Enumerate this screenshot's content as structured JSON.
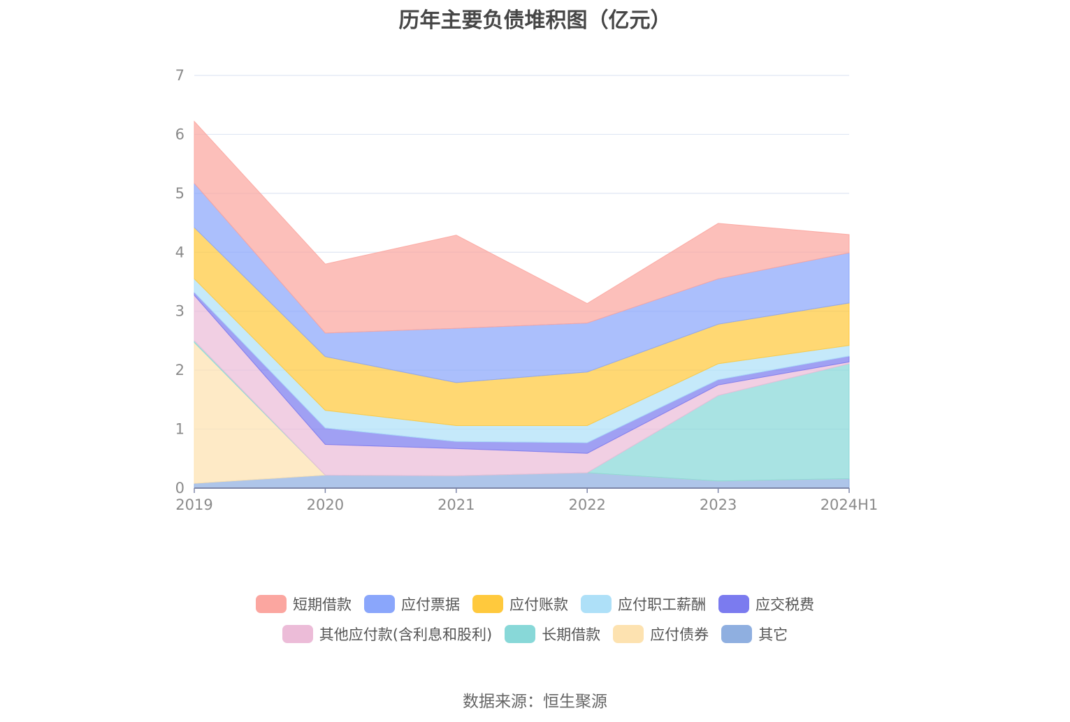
{
  "title": "历年主要负债堆积图（亿元）",
  "source": "数据来源：恒生聚源",
  "chart_data": {
    "type": "area",
    "stacked": true,
    "categories": [
      "2019",
      "2020",
      "2021",
      "2022",
      "2023",
      "2024H1"
    ],
    "ylim": [
      0,
      7
    ],
    "yticks": [
      0,
      1,
      2,
      3,
      4,
      5,
      6,
      7
    ],
    "grid": true,
    "legend_position": "bottom",
    "series": [
      {
        "name": "其它",
        "color": "#8fafe0",
        "values": [
          0.08,
          0.22,
          0.21,
          0.26,
          0.12,
          0.16
        ]
      },
      {
        "name": "应付债券",
        "color": "#fde2b0",
        "values": [
          2.39,
          0.0,
          0.0,
          0.0,
          0.0,
          0.0
        ]
      },
      {
        "name": "长期借款",
        "color": "#88d8d8",
        "values": [
          0.03,
          0.0,
          0.0,
          0.0,
          1.45,
          1.95
        ]
      },
      {
        "name": "其他应付款(含利息和股利)",
        "color": "#ecbcd8",
        "values": [
          0.77,
          0.52,
          0.46,
          0.33,
          0.18,
          0.03
        ]
      },
      {
        "name": "应交税费",
        "color": "#7b7bef",
        "values": [
          0.05,
          0.28,
          0.12,
          0.18,
          0.09,
          0.1
        ]
      },
      {
        "name": "应付职工薪酬",
        "color": "#aee0f8",
        "values": [
          0.23,
          0.3,
          0.27,
          0.29,
          0.27,
          0.18
        ]
      },
      {
        "name": "应付账款",
        "color": "#ffc93d",
        "values": [
          0.87,
          0.91,
          0.73,
          0.91,
          0.67,
          0.72
        ]
      },
      {
        "name": "应付票据",
        "color": "#8aa6fb",
        "values": [
          0.75,
          0.4,
          0.92,
          0.83,
          0.77,
          0.85
        ]
      },
      {
        "name": "短期借款",
        "color": "#fba6a0",
        "values": [
          1.05,
          1.17,
          1.58,
          0.33,
          0.94,
          0.31
        ]
      }
    ],
    "legend_order": [
      "短期借款",
      "应付票据",
      "应付账款",
      "应付职工薪酬",
      "应交税费",
      "其他应付款(含利息和股利)",
      "长期借款",
      "应付债券",
      "其它"
    ]
  }
}
